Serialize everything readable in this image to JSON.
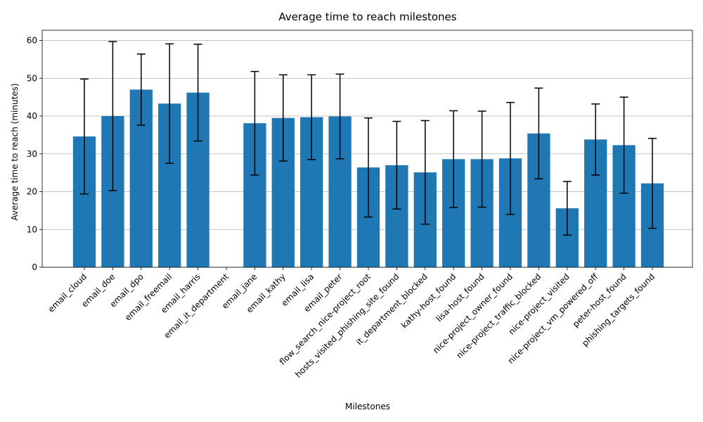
{
  "chart_data": {
    "type": "bar",
    "title": "Average time to reach milestones",
    "xlabel": "Milestones",
    "ylabel": "Average time to reach (minutes)",
    "ylim": [
      0,
      62.7
    ],
    "yticks": [
      0,
      10,
      20,
      30,
      40,
      50,
      60
    ],
    "grid": "y-axis",
    "bar_color": "#1f77b4",
    "errorbar_color": "#000000",
    "categories": [
      "email_cloud",
      "email_doe",
      "email_dpo",
      "email_freemail",
      "email_harris",
      "email_it_department",
      "email_jane",
      "email_kathy",
      "email_lisa",
      "email_peter",
      "flow_search_nice-project_root",
      "hosts_visited_phishing_site_found",
      "it_department_blocked",
      "kathy-host_found",
      "lisa-host_found",
      "nice-project_owner_found",
      "nice-project_traffic_blocked",
      "nice-project_visited",
      "nice-project_vm_powered_off",
      "peter-host_found",
      "phishing_targets_found"
    ],
    "values": [
      34.6,
      40.0,
      47.0,
      43.3,
      46.2,
      0,
      38.1,
      39.5,
      39.7,
      39.9,
      26.4,
      27.0,
      25.1,
      28.6,
      28.6,
      28.8,
      35.4,
      15.6,
      33.8,
      32.3,
      22.2
    ],
    "errors": [
      15.2,
      19.7,
      9.4,
      15.8,
      12.8,
      0,
      13.7,
      11.4,
      11.2,
      11.2,
      13.1,
      11.6,
      13.7,
      12.8,
      12.7,
      14.8,
      12.0,
      7.1,
      9.4,
      12.7,
      11.9
    ]
  }
}
